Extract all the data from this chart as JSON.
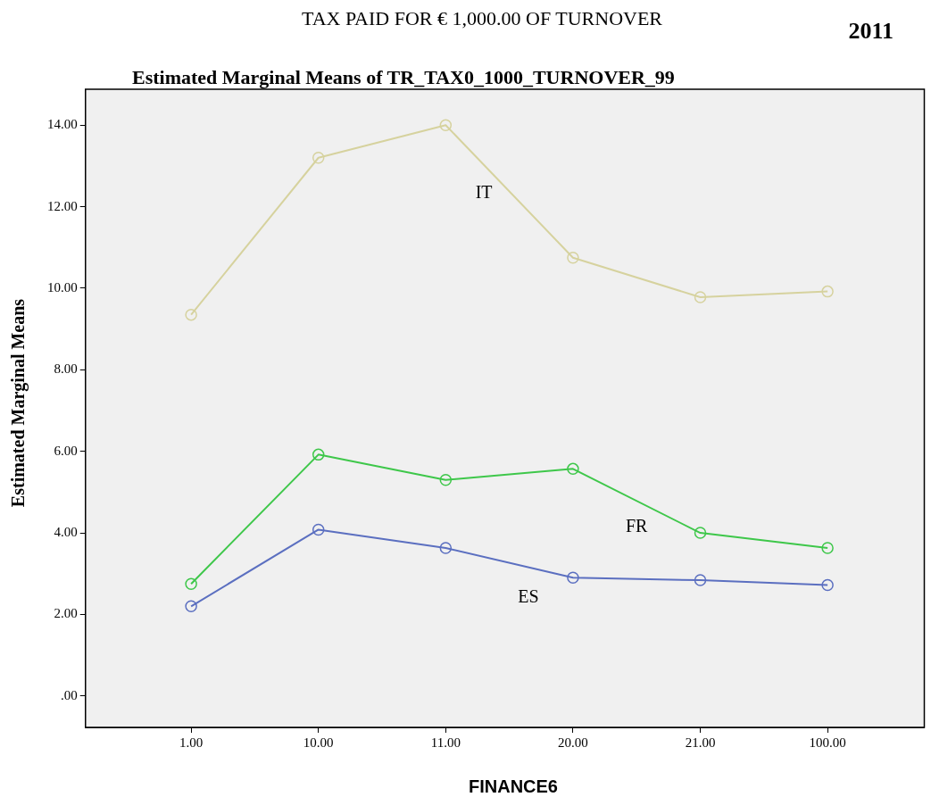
{
  "chart_data": {
    "type": "line",
    "title": "TAX PAID FOR € 1,000.00 OF TURNOVER",
    "subtitle": "Estimated Marginal Means of TR_TAX0_1000_TURNOVER_99",
    "annotations": [
      "2011"
    ],
    "xlabel": "FINANCE6",
    "ylabel": "Estimated Marginal Means",
    "categories": [
      "1.00",
      "10.00",
      "11.00",
      "20.00",
      "21.00",
      "100.00"
    ],
    "series": [
      {
        "name": "IT",
        "color": "#d6d29e",
        "values": [
          9.35,
          13.2,
          14.0,
          10.75,
          9.78,
          9.92
        ]
      },
      {
        "name": "FR",
        "color": "#3ec74a",
        "values": [
          2.75,
          5.92,
          5.3,
          5.57,
          4.0,
          3.63
        ]
      },
      {
        "name": "ES",
        "color": "#5b6fc0",
        "values": [
          2.2,
          4.08,
          3.63,
          2.9,
          2.84,
          2.72
        ]
      }
    ],
    "ylim": [
      -0.77,
      14.88
    ],
    "yticks": [
      {
        "value": 0,
        "label": ".00"
      },
      {
        "value": 2,
        "label": "2.00"
      },
      {
        "value": 4,
        "label": "4.00"
      },
      {
        "value": 6,
        "label": "6.00"
      },
      {
        "value": 8,
        "label": "8.00"
      },
      {
        "value": 10,
        "label": "10.00"
      },
      {
        "value": 12,
        "label": "12.00"
      },
      {
        "value": 14,
        "label": "14.00"
      }
    ],
    "grid": false,
    "legend": false,
    "marker": "circle",
    "line_style": "solid"
  }
}
